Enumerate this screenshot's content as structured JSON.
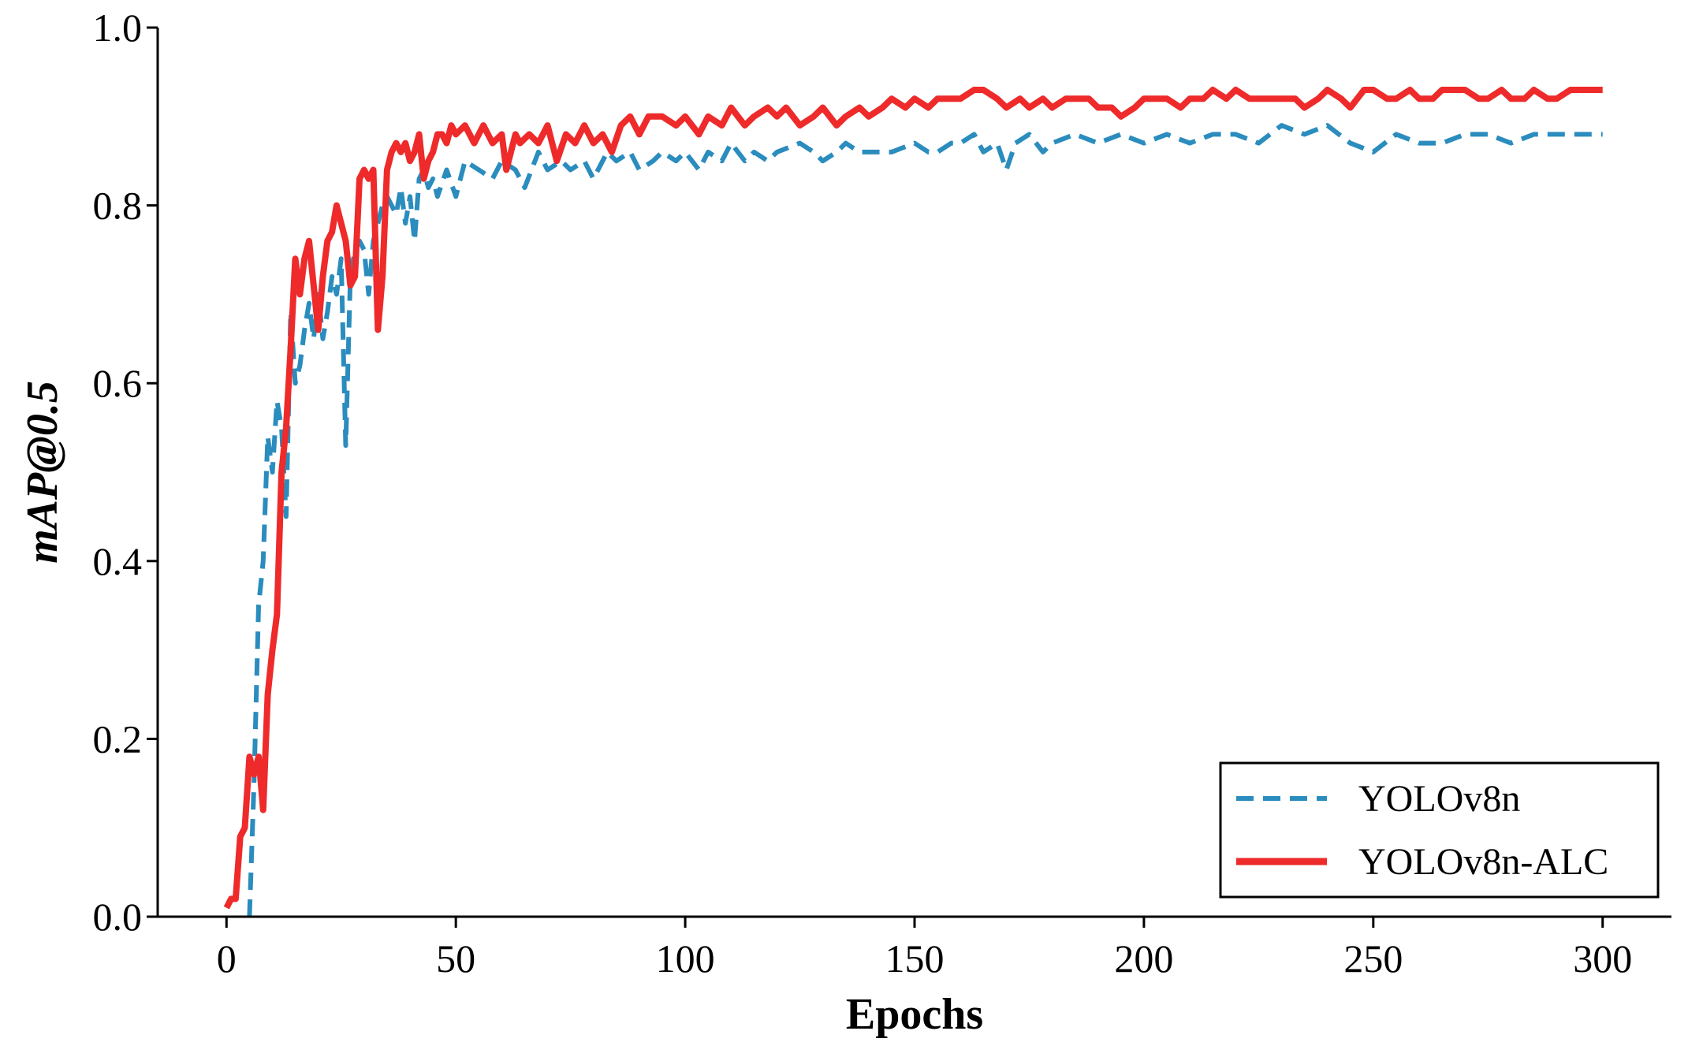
{
  "chart_data": {
    "type": "line",
    "xlabel": "Epochs",
    "ylabel": "mAP@0.5",
    "xlim": [
      -15,
      315
    ],
    "ylim": [
      0,
      1.0
    ],
    "xticks": [
      0,
      50,
      100,
      150,
      200,
      250,
      300
    ],
    "yticks": [
      0.0,
      0.2,
      0.4,
      0.6,
      0.8,
      1.0
    ],
    "xtick_labels": [
      "0",
      "50",
      "100",
      "150",
      "200",
      "250",
      "300"
    ],
    "ytick_labels": [
      "0.0",
      "0.2",
      "0.4",
      "0.6",
      "0.8",
      "1.0"
    ],
    "grid": false,
    "legend_position": "bottom-right",
    "series": [
      {
        "name": "YOLOv8n",
        "color": "#2b8cbe",
        "style": "dashed",
        "points": [
          [
            5,
            0.0
          ],
          [
            6,
            0.15
          ],
          [
            7,
            0.35
          ],
          [
            8,
            0.4
          ],
          [
            9,
            0.54
          ],
          [
            10,
            0.5
          ],
          [
            11,
            0.58
          ],
          [
            12,
            0.55
          ],
          [
            13,
            0.45
          ],
          [
            14,
            0.68
          ],
          [
            15,
            0.6
          ],
          [
            16,
            0.62
          ],
          [
            17,
            0.66
          ],
          [
            18,
            0.69
          ],
          [
            19,
            0.65
          ],
          [
            20,
            0.7
          ],
          [
            21,
            0.65
          ],
          [
            22,
            0.68
          ],
          [
            23,
            0.72
          ],
          [
            24,
            0.7
          ],
          [
            25,
            0.74
          ],
          [
            26,
            0.53
          ],
          [
            27,
            0.72
          ],
          [
            28,
            0.75
          ],
          [
            29,
            0.76
          ],
          [
            30,
            0.75
          ],
          [
            31,
            0.7
          ],
          [
            32,
            0.76
          ],
          [
            33,
            0.78
          ],
          [
            34,
            0.8
          ],
          [
            35,
            0.81
          ],
          [
            36,
            0.8
          ],
          [
            37,
            0.79
          ],
          [
            38,
            0.82
          ],
          [
            39,
            0.78
          ],
          [
            40,
            0.81
          ],
          [
            41,
            0.76
          ],
          [
            42,
            0.83
          ],
          [
            43,
            0.84
          ],
          [
            44,
            0.82
          ],
          [
            45,
            0.83
          ],
          [
            46,
            0.81
          ],
          [
            48,
            0.84
          ],
          [
            50,
            0.81
          ],
          [
            52,
            0.85
          ],
          [
            55,
            0.84
          ],
          [
            58,
            0.83
          ],
          [
            60,
            0.85
          ],
          [
            63,
            0.84
          ],
          [
            65,
            0.82
          ],
          [
            68,
            0.86
          ],
          [
            70,
            0.84
          ],
          [
            73,
            0.85
          ],
          [
            75,
            0.84
          ],
          [
            78,
            0.85
          ],
          [
            80,
            0.83
          ],
          [
            83,
            0.86
          ],
          [
            85,
            0.85
          ],
          [
            88,
            0.86
          ],
          [
            90,
            0.84
          ],
          [
            93,
            0.85
          ],
          [
            95,
            0.86
          ],
          [
            98,
            0.85
          ],
          [
            100,
            0.86
          ],
          [
            103,
            0.84
          ],
          [
            105,
            0.86
          ],
          [
            108,
            0.85
          ],
          [
            110,
            0.87
          ],
          [
            113,
            0.85
          ],
          [
            115,
            0.86
          ],
          [
            118,
            0.85
          ],
          [
            120,
            0.86
          ],
          [
            125,
            0.87
          ],
          [
            128,
            0.86
          ],
          [
            130,
            0.85
          ],
          [
            133,
            0.86
          ],
          [
            135,
            0.87
          ],
          [
            138,
            0.86
          ],
          [
            140,
            0.86
          ],
          [
            145,
            0.86
          ],
          [
            150,
            0.87
          ],
          [
            153,
            0.86
          ],
          [
            155,
            0.86
          ],
          [
            158,
            0.87
          ],
          [
            160,
            0.87
          ],
          [
            163,
            0.88
          ],
          [
            165,
            0.86
          ],
          [
            168,
            0.87
          ],
          [
            170,
            0.84
          ],
          [
            172,
            0.87
          ],
          [
            175,
            0.88
          ],
          [
            178,
            0.86
          ],
          [
            180,
            0.87
          ],
          [
            185,
            0.88
          ],
          [
            190,
            0.87
          ],
          [
            195,
            0.88
          ],
          [
            200,
            0.87
          ],
          [
            205,
            0.88
          ],
          [
            210,
            0.87
          ],
          [
            215,
            0.88
          ],
          [
            220,
            0.88
          ],
          [
            225,
            0.87
          ],
          [
            230,
            0.89
          ],
          [
            235,
            0.88
          ],
          [
            240,
            0.89
          ],
          [
            245,
            0.87
          ],
          [
            250,
            0.86
          ],
          [
            255,
            0.88
          ],
          [
            260,
            0.87
          ],
          [
            265,
            0.87
          ],
          [
            270,
            0.88
          ],
          [
            275,
            0.88
          ],
          [
            280,
            0.87
          ],
          [
            285,
            0.88
          ],
          [
            290,
            0.88
          ],
          [
            295,
            0.88
          ],
          [
            300,
            0.88
          ]
        ]
      },
      {
        "name": "YOLOv8n-ALC",
        "color": "#ee2a2a",
        "style": "solid",
        "points": [
          [
            0,
            0.01
          ],
          [
            1,
            0.02
          ],
          [
            2,
            0.02
          ],
          [
            3,
            0.09
          ],
          [
            4,
            0.1
          ],
          [
            5,
            0.18
          ],
          [
            6,
            0.16
          ],
          [
            7,
            0.18
          ],
          [
            8,
            0.12
          ],
          [
            9,
            0.25
          ],
          [
            10,
            0.3
          ],
          [
            11,
            0.34
          ],
          [
            12,
            0.5
          ],
          [
            13,
            0.55
          ],
          [
            14,
            0.64
          ],
          [
            15,
            0.74
          ],
          [
            16,
            0.7
          ],
          [
            17,
            0.74
          ],
          [
            18,
            0.76
          ],
          [
            19,
            0.71
          ],
          [
            20,
            0.66
          ],
          [
            21,
            0.72
          ],
          [
            22,
            0.76
          ],
          [
            23,
            0.77
          ],
          [
            24,
            0.8
          ],
          [
            25,
            0.78
          ],
          [
            26,
            0.76
          ],
          [
            27,
            0.71
          ],
          [
            28,
            0.72
          ],
          [
            29,
            0.83
          ],
          [
            30,
            0.84
          ],
          [
            31,
            0.83
          ],
          [
            32,
            0.84
          ],
          [
            33,
            0.66
          ],
          [
            34,
            0.72
          ],
          [
            35,
            0.84
          ],
          [
            36,
            0.86
          ],
          [
            37,
            0.87
          ],
          [
            38,
            0.86
          ],
          [
            39,
            0.87
          ],
          [
            40,
            0.85
          ],
          [
            41,
            0.86
          ],
          [
            42,
            0.88
          ],
          [
            43,
            0.83
          ],
          [
            44,
            0.85
          ],
          [
            45,
            0.86
          ],
          [
            46,
            0.88
          ],
          [
            47,
            0.88
          ],
          [
            48,
            0.87
          ],
          [
            49,
            0.89
          ],
          [
            50,
            0.88
          ],
          [
            52,
            0.89
          ],
          [
            54,
            0.87
          ],
          [
            56,
            0.89
          ],
          [
            58,
            0.87
          ],
          [
            60,
            0.88
          ],
          [
            61,
            0.84
          ],
          [
            62,
            0.86
          ],
          [
            63,
            0.88
          ],
          [
            64,
            0.87
          ],
          [
            66,
            0.88
          ],
          [
            68,
            0.87
          ],
          [
            70,
            0.89
          ],
          [
            72,
            0.85
          ],
          [
            74,
            0.88
          ],
          [
            76,
            0.87
          ],
          [
            78,
            0.89
          ],
          [
            80,
            0.87
          ],
          [
            82,
            0.88
          ],
          [
            84,
            0.86
          ],
          [
            86,
            0.89
          ],
          [
            88,
            0.9
          ],
          [
            90,
            0.88
          ],
          [
            92,
            0.9
          ],
          [
            95,
            0.9
          ],
          [
            98,
            0.89
          ],
          [
            100,
            0.9
          ],
          [
            103,
            0.88
          ],
          [
            105,
            0.9
          ],
          [
            108,
            0.89
          ],
          [
            110,
            0.91
          ],
          [
            113,
            0.89
          ],
          [
            115,
            0.9
          ],
          [
            118,
            0.91
          ],
          [
            120,
            0.9
          ],
          [
            122,
            0.91
          ],
          [
            125,
            0.89
          ],
          [
            128,
            0.9
          ],
          [
            130,
            0.91
          ],
          [
            133,
            0.89
          ],
          [
            135,
            0.9
          ],
          [
            138,
            0.91
          ],
          [
            140,
            0.9
          ],
          [
            143,
            0.91
          ],
          [
            145,
            0.92
          ],
          [
            148,
            0.91
          ],
          [
            150,
            0.92
          ],
          [
            153,
            0.91
          ],
          [
            155,
            0.92
          ],
          [
            158,
            0.92
          ],
          [
            160,
            0.92
          ],
          [
            163,
            0.93
          ],
          [
            165,
            0.93
          ],
          [
            168,
            0.92
          ],
          [
            170,
            0.91
          ],
          [
            173,
            0.92
          ],
          [
            175,
            0.91
          ],
          [
            178,
            0.92
          ],
          [
            180,
            0.91
          ],
          [
            183,
            0.92
          ],
          [
            185,
            0.92
          ],
          [
            188,
            0.92
          ],
          [
            190,
            0.91
          ],
          [
            193,
            0.91
          ],
          [
            195,
            0.9
          ],
          [
            198,
            0.91
          ],
          [
            200,
            0.92
          ],
          [
            203,
            0.92
          ],
          [
            205,
            0.92
          ],
          [
            208,
            0.91
          ],
          [
            210,
            0.92
          ],
          [
            213,
            0.92
          ],
          [
            215,
            0.93
          ],
          [
            218,
            0.92
          ],
          [
            220,
            0.93
          ],
          [
            223,
            0.92
          ],
          [
            225,
            0.92
          ],
          [
            228,
            0.92
          ],
          [
            230,
            0.92
          ],
          [
            233,
            0.92
          ],
          [
            235,
            0.91
          ],
          [
            238,
            0.92
          ],
          [
            240,
            0.93
          ],
          [
            243,
            0.92
          ],
          [
            245,
            0.91
          ],
          [
            248,
            0.93
          ],
          [
            250,
            0.93
          ],
          [
            253,
            0.92
          ],
          [
            255,
            0.92
          ],
          [
            258,
            0.93
          ],
          [
            260,
            0.92
          ],
          [
            263,
            0.92
          ],
          [
            265,
            0.93
          ],
          [
            268,
            0.93
          ],
          [
            270,
            0.93
          ],
          [
            273,
            0.92
          ],
          [
            275,
            0.92
          ],
          [
            278,
            0.93
          ],
          [
            280,
            0.92
          ],
          [
            283,
            0.92
          ],
          [
            285,
            0.93
          ],
          [
            288,
            0.92
          ],
          [
            290,
            0.92
          ],
          [
            293,
            0.93
          ],
          [
            295,
            0.93
          ],
          [
            298,
            0.93
          ],
          [
            300,
            0.93
          ]
        ]
      }
    ]
  }
}
